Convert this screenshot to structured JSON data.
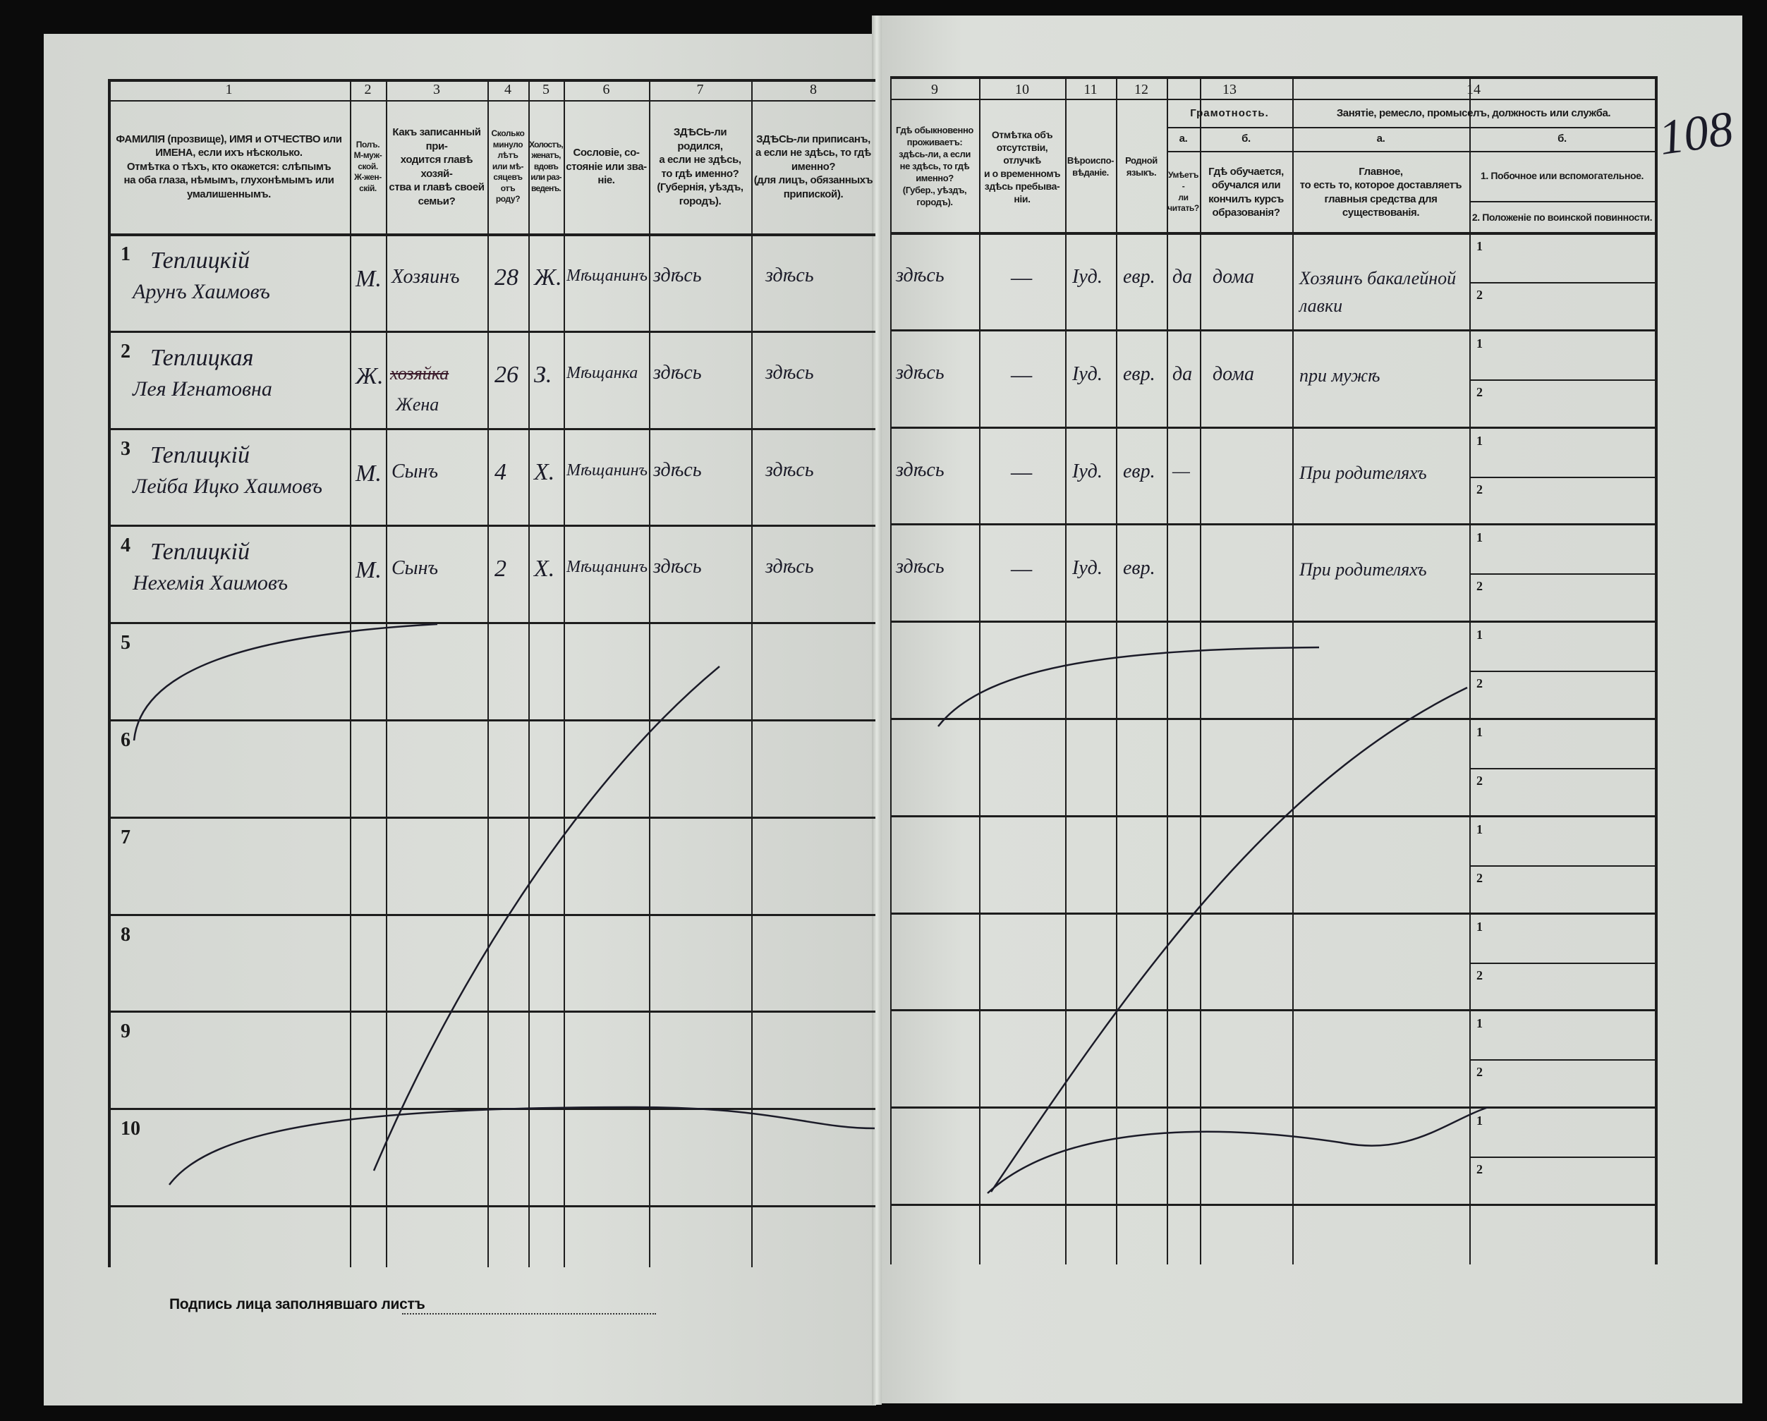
{
  "sheet_number": "108",
  "header": {
    "col_numbers": [
      "1",
      "2",
      "3",
      "4",
      "5",
      "6",
      "7",
      "8",
      "9",
      "10",
      "11",
      "12",
      "13",
      "14"
    ],
    "col1": "ФАМИЛІЯ (прозвище), ИМЯ и ОТЧЕСТВО или\nИМЕНА, если ихъ нѣсколько.\nОтмѣтка о тѣхъ, кто окажется: слѣпымъ\nна оба глаза, нѣмымъ, глухонѣмымъ или\nумалишеннымъ.",
    "col2": "Полъ.\nМ-муж-\nской.\nЖ-жен-\nскій.",
    "col3": "Какъ записанный при-\nходится главѣ хозяй-\nства и главѣ своей\nсемьи?",
    "col4": "Сколько\nминуло\nлѣтъ\nили мѣ-\nсяцевъ\nотъ роду?",
    "col5": "Холостъ,\nженатъ,\nвдовъ\nили раз-\nведенъ.",
    "col6": "Сословіе, со-\nстояніе или зва-\nніе.",
    "col7": "ЗДѢСЬ-ли родился,\nа если не здѣсь,\nто гдѣ именно?\n(Губернія, уѣздъ, городъ).",
    "col8": "ЗДѢСЬ-ли приписанъ,\nа если не здѣсь, то гдѣ\nименно?\n(для лицъ, обязанныхъ\nприпиской).",
    "col9": "Гдѣ обыкновенно\nпроживаетъ:\nздѣсь-ли, а если\nне здѣсь, то гдѣ\nименно?\n(Губер., уѣздъ, городъ).",
    "col10": "Отмѣтка объ\nотсутствіи, отлучкѣ\nи о временномъ\nздѣсь пребыва-\nніи.",
    "col11": "Вѣроиспо-\nвѣданіе.",
    "col12": "Родной\nязыкъ.",
    "col13": "Грамотность.",
    "col13a_letter": "а.",
    "col13a": "Умѣетъ-\nли\nчитать?",
    "col13b_letter": "б.",
    "col13b": "Гдѣ обучается,\nобучался или\nкончилъ курсъ\nобразованія?",
    "col14": "Занятіе, ремесло, промыселъ, должность или служба.",
    "col14a_letter": "а.",
    "col14a": "Главное,\nто есть то, которое доставляетъ\nглавныя средства для существованія.",
    "col14b_letter": "б.",
    "col14b_1": "1. Побочное или вспомогательное.",
    "col14b_2": "2. Положеніе по воинской повинности."
  },
  "subrow_labels": [
    "1",
    "2"
  ],
  "rows": [
    {
      "number": "1",
      "surname": "Теплицкій",
      "given": "Арунъ Хаимовъ",
      "sex": "М.",
      "relation": "Хозяинъ",
      "relation_struck": "",
      "age": "28",
      "marital": "Ж.",
      "estate": "Мѣщанинъ",
      "birthplace": "здѣсь",
      "registered": "здѣсь",
      "residence": "здѣсь",
      "absence": "—",
      "religion": "Iуд.",
      "language": "евр.",
      "literate": "да",
      "education": "дома",
      "occupation": "Хозяинъ бакалейной лавки"
    },
    {
      "number": "2",
      "surname": "Теплицкая",
      "given": "Лея Игнатовна",
      "sex": "Ж.",
      "relation": "Жена",
      "relation_struck": "хозяйка",
      "age": "26",
      "marital": "З.",
      "estate": "Мѣщанка",
      "birthplace": "здѣсь",
      "registered": "здѣсь",
      "residence": "здѣсь",
      "absence": "—",
      "religion": "Iуд.",
      "language": "евр.",
      "literate": "да",
      "education": "дома",
      "occupation": "при мужѣ"
    },
    {
      "number": "3",
      "surname": "Теплицкій",
      "given": "Лейба Ицко Хаимовъ",
      "sex": "М.",
      "relation": "Сынъ",
      "relation_struck": "",
      "age": "4",
      "marital": "Х.",
      "estate": "Мѣщанинъ",
      "birthplace": "здѣсь",
      "registered": "здѣсь",
      "residence": "здѣсь",
      "absence": "—",
      "religion": "Iуд.",
      "language": "евр.",
      "literate": "—",
      "education": "",
      "occupation": "При родителяхъ"
    },
    {
      "number": "4",
      "surname": "Теплицкій",
      "given": "Нехемія Хаимовъ",
      "sex": "М.",
      "relation": "Сынъ",
      "relation_struck": "",
      "age": "2",
      "marital": "Х.",
      "estate": "Мѣщанинъ",
      "birthplace": "здѣсь",
      "registered": "здѣсь",
      "residence": "здѣсь",
      "absence": "—",
      "religion": "Iуд.",
      "language": "евр.",
      "literate": "",
      "education": "",
      "occupation": "При родителяхъ"
    },
    {
      "number": "5"
    },
    {
      "number": "6"
    },
    {
      "number": "7"
    },
    {
      "number": "8"
    },
    {
      "number": "9"
    },
    {
      "number": "10"
    }
  ],
  "signature_label": "Подпись лица заполнявшаго листъ"
}
